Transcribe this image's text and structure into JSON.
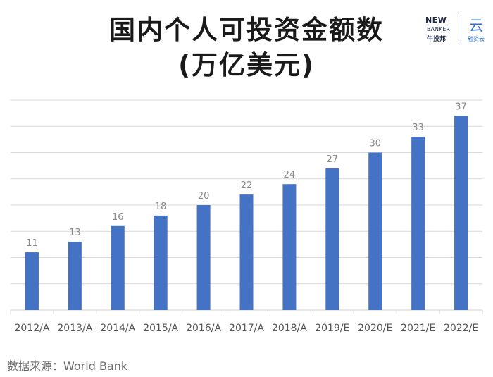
{
  "title_line1": "国内个人可投资金额数",
  "title_line2": "(万亿美元)",
  "logo": {
    "brand": "NEW",
    "brand_sub": "BANKER",
    "brand_cn": "牛投邦",
    "partner_glyph": "云",
    "partner_cn": "融资云"
  },
  "source": "数据来源：World Bank",
  "colors": {
    "bar": "#4472c4",
    "grid": "#d9d9d9"
  },
  "chart_data": {
    "type": "bar",
    "categories": [
      "2012/A",
      "2013/A",
      "2014/A",
      "2015/A",
      "2016/A",
      "2017/A",
      "2018/A",
      "2019/E",
      "2020/E",
      "2021/E",
      "2022/E"
    ],
    "values": [
      11,
      13,
      16,
      18,
      20,
      22,
      24,
      27,
      30,
      33,
      37
    ],
    "ylim": [
      0,
      40
    ],
    "grid": true
  }
}
